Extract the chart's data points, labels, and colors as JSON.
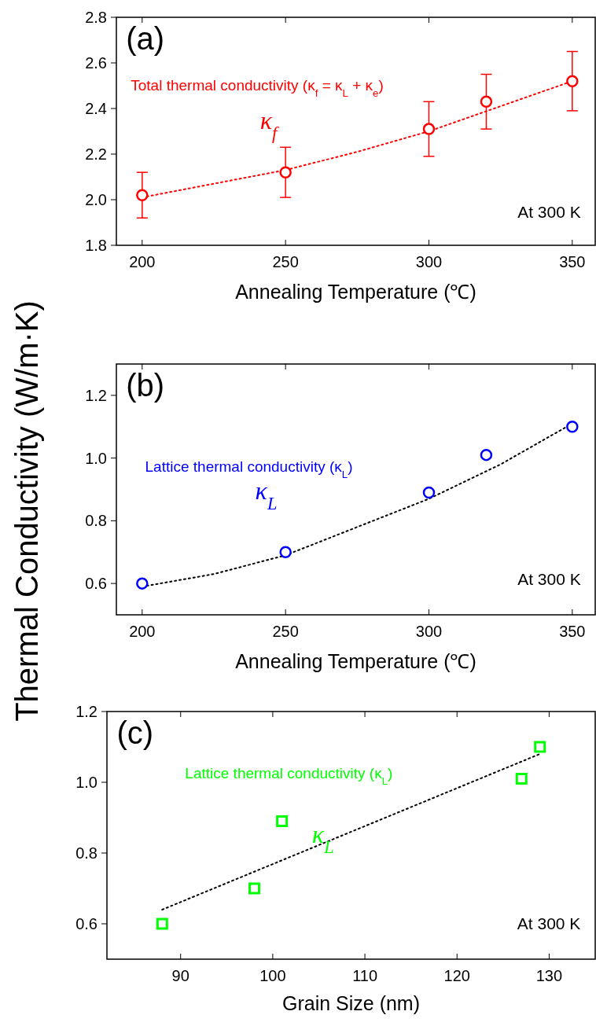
{
  "chart_data": [
    {
      "type": "scatter",
      "xlabel": "Annealing Temperature (℃)",
      "x": [
        200,
        250,
        300,
        320,
        350
      ],
      "xlim": [
        191,
        358
      ],
      "xticks": [
        200,
        250,
        300,
        350
      ],
      "ylim": [
        1.8,
        2.8
      ],
      "yticks": [
        {
          "value": 1.8,
          "label": "1.8"
        },
        {
          "value": 2.0,
          "label": "2.0"
        },
        {
          "value": 2.2,
          "label": "2.2"
        },
        {
          "value": 2.4,
          "label": "2.4"
        },
        {
          "value": 2.6,
          "label": "2.6"
        },
        {
          "value": 2.8,
          "label": "2.8"
        }
      ],
      "grid": false,
      "annotations": [
        "(a)",
        "Total thermal conductivity (κ$_{f}$ = κ$_{L}$ + κ$_{e}$)",
        "At 300 K"
      ],
      "series": [
        {
          "type": "line",
          "color": "#ff0000",
          "line_style": "dotted",
          "marker": "none",
          "x": [
            200,
            225,
            250,
            275,
            300,
            325,
            350
          ],
          "values": [
            2.01,
            2.07,
            2.13,
            2.21,
            2.3,
            2.41,
            2.52
          ]
        },
        {
          "name": "κ$_{f}$",
          "color": "#ff0000",
          "marker": "circle",
          "values": [
            2.02,
            2.12,
            2.31,
            2.43,
            2.52
          ],
          "errors": [
            [
              1.92,
              2.12
            ],
            [
              2.01,
              2.23
            ],
            [
              2.19,
              2.43
            ],
            [
              2.31,
              2.55
            ],
            [
              2.39,
              2.65
            ]
          ]
        }
      ]
    },
    {
      "type": "scatter",
      "xlabel": "Annealing Temperature (℃)",
      "ylabel": "Thermal Conductivity (W/m·K)",
      "x": [
        200,
        250,
        300,
        320,
        350
      ],
      "xlim": [
        191,
        358
      ],
      "xticks": [
        200,
        250,
        300,
        350
      ],
      "ylim": [
        0.5,
        1.3
      ],
      "yticks": [
        {
          "value": 0.6,
          "label": "0.6"
        },
        {
          "value": 0.8,
          "label": "0.8"
        },
        {
          "value": 1.0,
          "label": "1.0"
        },
        {
          "value": 1.2,
          "label": "1.2"
        }
      ],
      "grid": false,
      "annotations": [
        "(b)",
        "Lattice thermal conductivity (κ$_{L}$)",
        "At 300 K"
      ],
      "series": [
        {
          "type": "line",
          "color": "#000000",
          "line_style": "dotted",
          "marker": "none",
          "x": [
            200,
            225,
            250,
            275,
            300,
            325,
            350
          ],
          "values": [
            0.59,
            0.63,
            0.69,
            0.78,
            0.87,
            0.98,
            1.11
          ]
        },
        {
          "name": "κ$_{L}$",
          "color": "#0000ff",
          "marker": "circle",
          "values": [
            0.6,
            0.7,
            0.89,
            1.01,
            1.1
          ]
        }
      ]
    },
    {
      "type": "scatter",
      "xlabel": "Grain Size (nm)",
      "x": [
        88,
        98,
        101,
        127,
        129
      ],
      "xlim": [
        82,
        135
      ],
      "xticks": [
        90,
        100,
        110,
        120,
        130
      ],
      "ylim": [
        0.5,
        1.2
      ],
      "yticks": [
        {
          "value": 0.6,
          "label": "0.6"
        },
        {
          "value": 0.8,
          "label": "0.8"
        },
        {
          "value": 1.0,
          "label": "1.0"
        },
        {
          "value": 1.2,
          "label": "1.2"
        }
      ],
      "grid": false,
      "annotations": [
        "(c)",
        "Lattice thermal conductivity (κ$_{L}$)",
        "At 300 K"
      ],
      "series": [
        {
          "type": "line",
          "color": "#000000",
          "line_style": "dotted",
          "marker": "none",
          "x": [
            88,
            129
          ],
          "values": [
            0.64,
            1.08
          ]
        },
        {
          "name": "κ$_{L}$",
          "color": "#00ff00",
          "marker": "square",
          "values": [
            0.6,
            0.7,
            0.89,
            1.01,
            1.1
          ]
        }
      ]
    }
  ]
}
